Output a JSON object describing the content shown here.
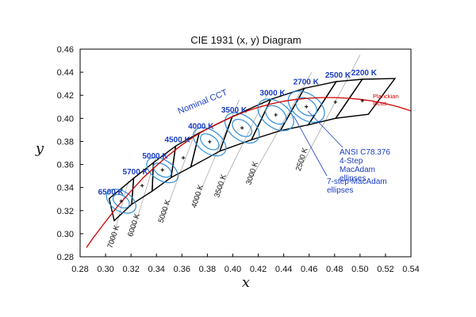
{
  "chart_data": {
    "type": "scatter",
    "title": "CIE 1931 (x, y) Diagram",
    "xlabel": "x",
    "ylabel": "y",
    "xlim": [
      0.28,
      0.54
    ],
    "ylim": [
      0.28,
      0.46
    ],
    "x_ticks": [
      "0.28",
      "0.30",
      "0.32",
      "0.34",
      "0.36",
      "0.38",
      "0.40",
      "0.42",
      "0.44",
      "0.46",
      "0.48",
      "0.50",
      "0.52",
      "0.54"
    ],
    "y_ticks": [
      "0.28",
      "0.30",
      "0.32",
      "0.34",
      "0.36",
      "0.38",
      "0.40",
      "0.42",
      "0.44",
      "0.46"
    ],
    "grid": false,
    "planckian_locus": {
      "label": "Planckian locus",
      "color": "#d00000",
      "points": [
        [
          0.285,
          0.288
        ],
        [
          0.29,
          0.296
        ],
        [
          0.3,
          0.3105
        ],
        [
          0.31,
          0.3245
        ],
        [
          0.32,
          0.337
        ],
        [
          0.33,
          0.349
        ],
        [
          0.34,
          0.359
        ],
        [
          0.35,
          0.3685
        ],
        [
          0.36,
          0.377
        ],
        [
          0.37,
          0.3845
        ],
        [
          0.38,
          0.391
        ],
        [
          0.39,
          0.3965
        ],
        [
          0.4,
          0.4015
        ],
        [
          0.41,
          0.406
        ],
        [
          0.42,
          0.4095
        ],
        [
          0.43,
          0.4125
        ],
        [
          0.44,
          0.4148
        ],
        [
          0.45,
          0.4165
        ],
        [
          0.46,
          0.4175
        ],
        [
          0.47,
          0.418
        ],
        [
          0.48,
          0.418
        ],
        [
          0.49,
          0.4175
        ],
        [
          0.5,
          0.4165
        ],
        [
          0.51,
          0.415
        ],
        [
          0.52,
          0.4128
        ],
        [
          0.53,
          0.41
        ],
        [
          0.54,
          0.4065
        ]
      ]
    },
    "quadrangles": [
      {
        "cct": "6500 K",
        "corners": [
          [
            0.3028,
            0.3304
          ],
          [
            0.3068,
            0.3113
          ],
          [
            0.3205,
            0.3255
          ],
          [
            0.3221,
            0.3481
          ]
        ]
      },
      {
        "cct": "5700 K",
        "corners": [
          [
            0.3221,
            0.3481
          ],
          [
            0.3205,
            0.3255
          ],
          [
            0.3366,
            0.3369
          ],
          [
            0.3376,
            0.3616
          ]
        ]
      },
      {
        "cct": "5000 K",
        "corners": [
          [
            0.3376,
            0.3616
          ],
          [
            0.3366,
            0.3369
          ],
          [
            0.3515,
            0.3487
          ],
          [
            0.3551,
            0.376
          ]
        ]
      },
      {
        "cct": "4500 K",
        "corners": [
          [
            0.3551,
            0.376
          ],
          [
            0.3515,
            0.3487
          ],
          [
            0.367,
            0.3578
          ],
          [
            0.3736,
            0.3874
          ]
        ]
      },
      {
        "cct": "4000 K",
        "corners": [
          [
            0.3736,
            0.3874
          ],
          [
            0.367,
            0.3578
          ],
          [
            0.3898,
            0.3716
          ],
          [
            0.3996,
            0.4015
          ]
        ]
      },
      {
        "cct": "3500 K",
        "corners": [
          [
            0.3996,
            0.4015
          ],
          [
            0.3898,
            0.3716
          ],
          [
            0.4147,
            0.3814
          ],
          [
            0.4299,
            0.4165
          ]
        ]
      },
      {
        "cct": "3000 K",
        "corners": [
          [
            0.4299,
            0.4165
          ],
          [
            0.4147,
            0.3814
          ],
          [
            0.4373,
            0.3893
          ],
          [
            0.4562,
            0.426
          ]
        ]
      },
      {
        "cct": "2700 K",
        "corners": [
          [
            0.4562,
            0.426
          ],
          [
            0.4373,
            0.3893
          ],
          [
            0.4593,
            0.3944
          ],
          [
            0.4813,
            0.4319
          ]
        ]
      },
      {
        "cct": "2500 K",
        "corners": [
          [
            0.4813,
            0.4319
          ],
          [
            0.4593,
            0.3944
          ],
          [
            0.4809,
            0.4001
          ],
          [
            0.5018,
            0.4339
          ]
        ]
      },
      {
        "cct": "2200 K",
        "corners": [
          [
            0.5018,
            0.4339
          ],
          [
            0.4809,
            0.4001
          ],
          [
            0.5065,
            0.4035
          ],
          [
            0.5274,
            0.4345
          ]
        ]
      }
    ],
    "nominal_points": [
      {
        "cct": "6500 K",
        "x": 0.3123,
        "y": 0.3282
      },
      {
        "cct": "5700 K",
        "x": 0.3287,
        "y": 0.3417
      },
      {
        "cct": "5000 K",
        "x": 0.3447,
        "y": 0.3553
      },
      {
        "cct": "4500 K",
        "x": 0.3611,
        "y": 0.3658
      },
      {
        "cct": "4000 K",
        "x": 0.3818,
        "y": 0.3797
      },
      {
        "cct": "3500 K",
        "x": 0.4073,
        "y": 0.3917
      },
      {
        "cct": "3000 K",
        "x": 0.4338,
        "y": 0.403
      },
      {
        "cct": "2700 K",
        "x": 0.4578,
        "y": 0.4101
      },
      {
        "cct": "2500 K",
        "x": 0.4806,
        "y": 0.4141
      },
      {
        "cct": "2200 K",
        "x": 0.5018,
        "y": 0.4153
      }
    ],
    "ellipses_4step": [
      {
        "x": 0.3123,
        "y": 0.3282,
        "rx": 0.0045,
        "ry": 0.0078,
        "angle": 58
      },
      {
        "x": 0.3446,
        "y": 0.3551,
        "rx": 0.0045,
        "ry": 0.0085,
        "angle": 58
      },
      {
        "x": 0.3818,
        "y": 0.3797,
        "rx": 0.005,
        "ry": 0.009,
        "angle": 54
      },
      {
        "x": 0.4073,
        "y": 0.3917,
        "rx": 0.0055,
        "ry": 0.0095,
        "angle": 53
      },
      {
        "x": 0.4338,
        "y": 0.403,
        "rx": 0.006,
        "ry": 0.01,
        "angle": 53
      },
      {
        "x": 0.4578,
        "y": 0.4101,
        "rx": 0.006,
        "ry": 0.01,
        "angle": 55
      }
    ],
    "ellipses_7step": [
      {
        "x": 0.3123,
        "y": 0.3282,
        "rx": 0.0078,
        "ry": 0.014,
        "angle": 58
      },
      {
        "x": 0.3446,
        "y": 0.3551,
        "rx": 0.008,
        "ry": 0.015,
        "angle": 58
      },
      {
        "x": 0.3818,
        "y": 0.3797,
        "rx": 0.0088,
        "ry": 0.016,
        "angle": 54
      },
      {
        "x": 0.4073,
        "y": 0.3917,
        "rx": 0.0095,
        "ry": 0.0168,
        "angle": 53
      },
      {
        "x": 0.4338,
        "y": 0.403,
        "rx": 0.01,
        "ry": 0.0175,
        "angle": 53
      },
      {
        "x": 0.4578,
        "y": 0.4101,
        "rx": 0.01,
        "ry": 0.0175,
        "angle": 55
      }
    ],
    "isotherm_labels_bottom": [
      {
        "text": "7000 K",
        "x": 0.305,
        "y": 0.287
      },
      {
        "text": "6000 K",
        "x": 0.321,
        "y": 0.297
      },
      {
        "text": "5000 K",
        "x": 0.345,
        "y": 0.309
      },
      {
        "text": "4000 K",
        "x": 0.371,
        "y": 0.322
      },
      {
        "text": "3500 K",
        "x": 0.389,
        "y": 0.331
      },
      {
        "text": "3000 K",
        "x": 0.414,
        "y": 0.342
      },
      {
        "text": "2500 K",
        "x": 0.453,
        "y": 0.354
      }
    ],
    "annotations": {
      "nominal_cct": "Nominal CCT",
      "planckian_line1": "Planckian",
      "planckian_line2": "locus",
      "ansi_line1": "ANSI C78.376",
      "ansi_line2": "4-Step",
      "ansi_line3": "MacAdam",
      "ansi_line4": "ellipses",
      "seven_line1": "7-step MacAdam",
      "seven_line2": "ellipses"
    },
    "colors": {
      "locus": "#d00000",
      "quad": "#000000",
      "ellipse": "#2f8fd8",
      "labels": "#1a3cc4"
    }
  }
}
